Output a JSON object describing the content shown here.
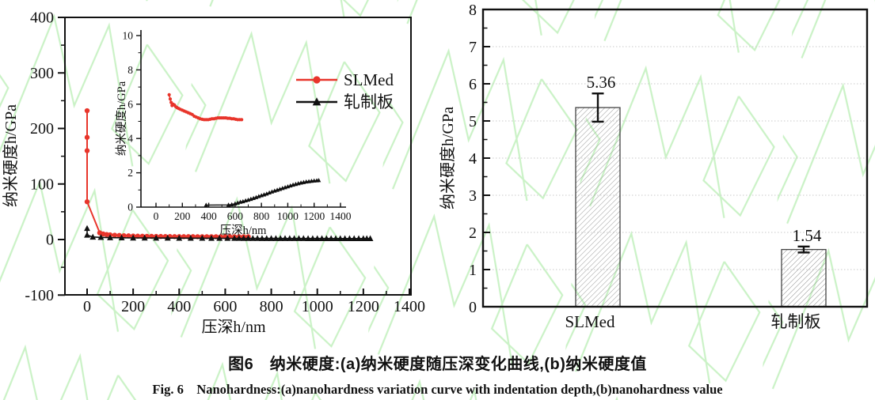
{
  "figure": {
    "caption_zh": "图6　纳米硬度:(a)纳米硬度随压深变化曲线,(b)纳米硬度值",
    "caption_en": "Fig. 6　Nanohardness:(a)nanohardness variation curve with indentation depth,(b)nanohardness value"
  },
  "colors": {
    "slmed_red": "#e8352b",
    "rolled_black": "#111111",
    "axis": "#111111",
    "grid": "#c9c9c9",
    "bar_edge": "#444444",
    "bar_hatch": "#8c8c8c",
    "watermark_green": "#9fe897"
  },
  "chart_data": [
    {
      "id": "panel-a-main",
      "type": "scatter",
      "xlabel": "压深h/nm",
      "ylabel": "纳米硬度h/GPa",
      "xlim": [
        -100,
        1400
      ],
      "ylim": [
        -100,
        400
      ],
      "xticks": [
        0,
        200,
        400,
        600,
        800,
        1000,
        1200,
        1400
      ],
      "yticks": [
        -100,
        0,
        100,
        200,
        300,
        400
      ],
      "legend": [
        {
          "label": "SLMed",
          "marker": "circle",
          "color": "#e8352b"
        },
        {
          "label": "轧制板",
          "marker": "triangle",
          "color": "#111111"
        }
      ],
      "series": [
        {
          "name": "SLMed",
          "marker": "circle",
          "color": "#e8352b",
          "points": [
            [
              0,
              232
            ],
            [
              0,
              184
            ],
            [
              0,
              160
            ],
            [
              0,
              68
            ],
            [
              55,
              12
            ],
            [
              70,
              10
            ],
            [
              85,
              9
            ],
            [
              100,
              8.4
            ],
            [
              120,
              7.8
            ],
            [
              140,
              7.3
            ],
            [
              160,
              6.9
            ],
            [
              180,
              6.6
            ],
            [
              200,
              6.3
            ],
            [
              220,
              6.1
            ],
            [
              240,
              5.9
            ],
            [
              260,
              5.8
            ],
            [
              280,
              5.7
            ],
            [
              300,
              5.6
            ],
            [
              320,
              5.5
            ],
            [
              340,
              5.4
            ],
            [
              360,
              5.4
            ],
            [
              380,
              5.3
            ],
            [
              400,
              5.3
            ],
            [
              420,
              5.2
            ],
            [
              440,
              5.2
            ],
            [
              460,
              5.2
            ],
            [
              480,
              5.1
            ],
            [
              500,
              5.1
            ],
            [
              520,
              5.1
            ],
            [
              540,
              5.1
            ],
            [
              560,
              5.1
            ],
            [
              580,
              5.0
            ],
            [
              600,
              5.0
            ],
            [
              620,
              5.0
            ],
            [
              640,
              5.0
            ],
            [
              660,
              5.0
            ],
            [
              680,
              5.0
            ],
            [
              700,
              5.0
            ]
          ]
        },
        {
          "name": "轧制板",
          "marker": "triangle",
          "color": "#111111",
          "points": [
            [
              0,
              20
            ],
            [
              0,
              8
            ],
            [
              25,
              4.5
            ],
            [
              60,
              3.8
            ],
            [
              100,
              3.4
            ],
            [
              150,
              3.1
            ],
            [
              200,
              2.9
            ],
            [
              250,
              2.8
            ],
            [
              300,
              2.7
            ],
            [
              350,
              2.6
            ],
            [
              400,
              2.5
            ],
            [
              450,
              2.4
            ],
            [
              500,
              2.4
            ],
            [
              540,
              2.3
            ],
            [
              575,
              2.3
            ],
            [
              610,
              2.2
            ],
            [
              640,
              2.2
            ],
            [
              660,
              2.2
            ],
            [
              680,
              2.1
            ],
            [
              700,
              2.1
            ],
            [
              720,
              2.1
            ],
            [
              740,
              2.1
            ],
            [
              760,
              2.0
            ],
            [
              780,
              2.0
            ],
            [
              800,
              2.0
            ],
            [
              820,
              2.0
            ],
            [
              840,
              2.0
            ],
            [
              860,
              1.9
            ],
            [
              880,
              1.9
            ],
            [
              900,
              1.9
            ],
            [
              920,
              1.9
            ],
            [
              940,
              1.9
            ],
            [
              960,
              1.8
            ],
            [
              980,
              1.8
            ],
            [
              1000,
              1.8
            ],
            [
              1020,
              1.8
            ],
            [
              1040,
              1.8
            ],
            [
              1060,
              1.8
            ],
            [
              1080,
              1.7
            ],
            [
              1100,
              1.7
            ],
            [
              1120,
              1.7
            ],
            [
              1140,
              1.7
            ],
            [
              1160,
              1.7
            ],
            [
              1180,
              1.7
            ],
            [
              1200,
              1.7
            ],
            [
              1215,
              1.7
            ],
            [
              1230,
              1.7
            ]
          ]
        }
      ]
    },
    {
      "id": "panel-a-inset",
      "type": "scatter",
      "xlabel": "压深h/nm",
      "ylabel": "纳米硬度h/GPa",
      "xlim": [
        0,
        1400
      ],
      "ylim": [
        0,
        10
      ],
      "xticks": [
        0,
        200,
        400,
        600,
        800,
        1000,
        1200,
        1400
      ],
      "yticks": [
        0,
        2,
        4,
        6,
        8,
        10
      ],
      "series": [
        {
          "name": "SLMed",
          "marker": "circle",
          "color": "#e8352b",
          "points": [
            [
              100,
              6.55
            ],
            [
              108,
              6.3
            ],
            [
              115,
              6.1
            ],
            [
              122,
              5.92
            ],
            [
              130,
              6.0
            ],
            [
              140,
              5.95
            ],
            [
              150,
              5.85
            ],
            [
              160,
              5.8
            ],
            [
              172,
              5.75
            ],
            [
              185,
              5.7
            ],
            [
              200,
              5.65
            ],
            [
              215,
              5.6
            ],
            [
              230,
              5.55
            ],
            [
              245,
              5.5
            ],
            [
              260,
              5.45
            ],
            [
              275,
              5.4
            ],
            [
              290,
              5.3
            ],
            [
              305,
              5.25
            ],
            [
              320,
              5.2
            ],
            [
              335,
              5.15
            ],
            [
              350,
              5.12
            ],
            [
              365,
              5.1
            ],
            [
              380,
              5.1
            ],
            [
              395,
              5.1
            ],
            [
              410,
              5.12
            ],
            [
              425,
              5.15
            ],
            [
              440,
              5.15
            ],
            [
              455,
              5.18
            ],
            [
              470,
              5.2
            ],
            [
              485,
              5.2
            ],
            [
              500,
              5.2
            ],
            [
              515,
              5.2
            ],
            [
              530,
              5.2
            ],
            [
              545,
              5.18
            ],
            [
              560,
              5.18
            ],
            [
              575,
              5.15
            ],
            [
              590,
              5.15
            ],
            [
              605,
              5.12
            ],
            [
              620,
              5.1
            ],
            [
              635,
              5.1
            ],
            [
              650,
              5.1
            ]
          ]
        },
        {
          "name": "轧制板",
          "marker": "triangle",
          "color": "#111111",
          "points": [
            [
              380,
              0.12
            ],
            [
              550,
              0.13
            ],
            [
              575,
              0.15
            ],
            [
              600,
              0.2
            ],
            [
              620,
              0.25
            ],
            [
              640,
              0.3
            ],
            [
              660,
              0.33
            ],
            [
              680,
              0.38
            ],
            [
              700,
              0.42
            ],
            [
              720,
              0.47
            ],
            [
              740,
              0.52
            ],
            [
              760,
              0.57
            ],
            [
              780,
              0.63
            ],
            [
              800,
              0.68
            ],
            [
              820,
              0.73
            ],
            [
              840,
              0.78
            ],
            [
              860,
              0.84
            ],
            [
              880,
              0.9
            ],
            [
              900,
              0.95
            ],
            [
              920,
              1.0
            ],
            [
              940,
              1.05
            ],
            [
              960,
              1.1
            ],
            [
              980,
              1.15
            ],
            [
              1000,
              1.2
            ],
            [
              1020,
              1.25
            ],
            [
              1040,
              1.3
            ],
            [
              1060,
              1.34
            ],
            [
              1080,
              1.38
            ],
            [
              1100,
              1.42
            ],
            [
              1120,
              1.45
            ],
            [
              1140,
              1.48
            ],
            [
              1160,
              1.5
            ],
            [
              1180,
              1.52
            ],
            [
              1200,
              1.54
            ],
            [
              1220,
              1.55
            ],
            [
              1235,
              1.56
            ]
          ]
        }
      ]
    },
    {
      "id": "panel-b-bars",
      "type": "bar",
      "ylabel": "纳米硬度h/GPa",
      "ylim": [
        0,
        8
      ],
      "yticks": [
        0,
        1,
        2,
        3,
        4,
        5,
        6,
        7,
        8
      ],
      "grid": true,
      "categories": [
        "SLMed",
        "轧制板"
      ],
      "values": [
        5.36,
        1.54
      ],
      "errors": [
        0.38,
        0.08
      ],
      "value_labels": [
        "5.36",
        "1.54"
      ]
    }
  ]
}
